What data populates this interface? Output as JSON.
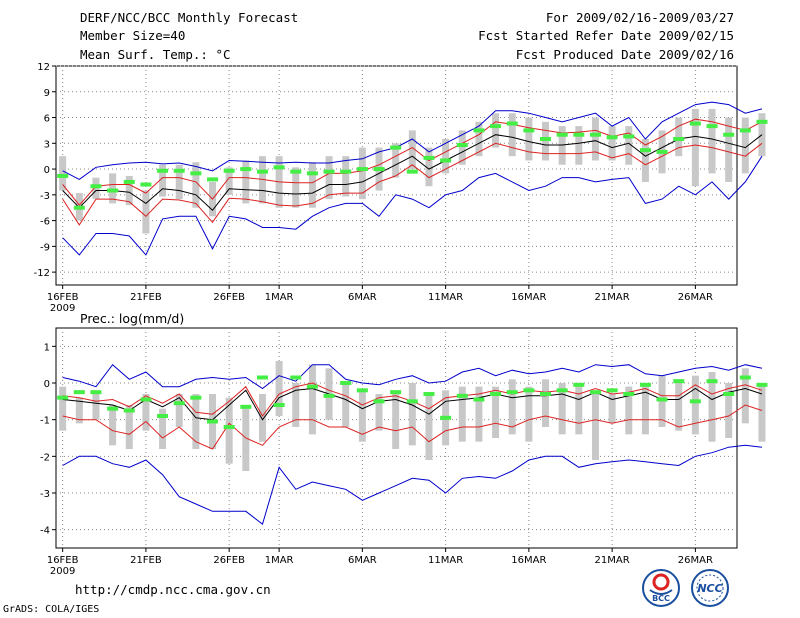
{
  "header": {
    "title": "DERF/NCC/BCC Monthly Forecast",
    "member": "Member Size=40",
    "variable": "Mean Surf. Temp.: °C",
    "period": "For 2009/02/16-2009/03/27",
    "started": "Fcst Started Refer Date 2009/02/15",
    "produced": "Fcst Produced Date 2009/02/16"
  },
  "footer": {
    "url": "http://cmdp.ncc.cma.gov.cn",
    "grads": "GrADS: COLA/IGES",
    "logo_bcc": "BCC",
    "logo_ncc": "NCC"
  },
  "colors": {
    "mean": "#000000",
    "spread": "#dd2222",
    "extreme": "#0000cc",
    "marker": "#44ee44",
    "box": "#c8c8c8"
  },
  "chart_data": [
    {
      "type": "line",
      "title": "Mean Surf. Temp.: °C",
      "ylim": [
        -13.5,
        12
      ],
      "yticks": [
        12,
        9,
        6,
        3,
        0,
        -3,
        -6,
        -9,
        -12
      ],
      "ytick_labels": [
        "12",
        "9",
        "6",
        "3",
        "0",
        "-3",
        "-6",
        "-9",
        "-12"
      ],
      "xlim": [
        -0.4,
        40.5
      ],
      "xtick_pos": [
        0,
        5,
        10,
        13,
        18,
        23,
        28,
        33,
        38
      ],
      "xtick_labels": [
        "16FEB",
        "21FEB",
        "26FEB",
        "1MAR",
        "6MAR",
        "11MAR",
        "16MAR",
        "21MAR",
        "26MAR"
      ],
      "year_label": "2009",
      "days": 38,
      "series": [
        {
          "name": "max",
          "role": "extreme",
          "values": [
            -0.2,
            -1.2,
            0.2,
            0.5,
            0.7,
            0.8,
            0.6,
            0.7,
            0.3,
            -0.2,
            1.0,
            0.9,
            0.8,
            0.7,
            0.8,
            0.7,
            0.7,
            1.0,
            1.2,
            2.0,
            2.5,
            3.5,
            2.0,
            3.0,
            4.0,
            5.0,
            6.8,
            6.8,
            6.5,
            6.0,
            5.5,
            6.0,
            6.5,
            5.0,
            6.0,
            3.5,
            5.5,
            6.5,
            7.5,
            7.8,
            7.5,
            6.5,
            7.0
          ]
        },
        {
          "name": "upper",
          "role": "spread",
          "values": [
            -1.8,
            -4.2,
            -2.0,
            -1.8,
            -1.8,
            -2.8,
            -1.0,
            -1.0,
            -1.5,
            -3.5,
            -1.0,
            -1.0,
            -1.2,
            -1.5,
            -1.6,
            -1.6,
            -0.5,
            -0.5,
            -0.2,
            0.5,
            1.5,
            2.5,
            1.0,
            2.0,
            3.0,
            4.0,
            5.5,
            5.2,
            4.8,
            4.5,
            4.2,
            4.3,
            4.5,
            3.8,
            4.2,
            2.8,
            3.8,
            5.0,
            5.8,
            5.5,
            5.0,
            4.5,
            5.5
          ]
        },
        {
          "name": "mean",
          "role": "mean",
          "values": [
            -2.5,
            -4.5,
            -2.5,
            -2.5,
            -2.7,
            -4.0,
            -2.3,
            -2.5,
            -3.0,
            -4.8,
            -2.3,
            -2.4,
            -2.5,
            -2.8,
            -2.9,
            -2.8,
            -1.8,
            -1.8,
            -1.5,
            -0.5,
            0.5,
            1.5,
            0.0,
            1.0,
            2.0,
            3.0,
            4.0,
            3.7,
            3.2,
            2.8,
            2.8,
            3.0,
            3.3,
            2.5,
            3.0,
            1.5,
            2.5,
            3.5,
            3.8,
            3.5,
            3.0,
            2.5,
            4.0
          ]
        },
        {
          "name": "lower",
          "role": "spread",
          "values": [
            -3.5,
            -6.5,
            -3.5,
            -3.5,
            -3.8,
            -5.5,
            -3.5,
            -3.6,
            -4.0,
            -6.2,
            -3.4,
            -3.5,
            -3.8,
            -4.2,
            -4.3,
            -4.0,
            -3.0,
            -2.8,
            -2.8,
            -1.5,
            -0.8,
            0.5,
            -1.0,
            0.0,
            1.0,
            2.0,
            3.0,
            2.5,
            2.0,
            1.8,
            1.8,
            1.8,
            2.0,
            1.3,
            1.8,
            0.5,
            1.5,
            2.5,
            2.8,
            2.5,
            2.0,
            1.5,
            3.0
          ]
        },
        {
          "name": "min",
          "role": "extreme",
          "values": [
            -8.0,
            -10.0,
            -7.5,
            -7.5,
            -7.8,
            -10.0,
            -5.8,
            -5.5,
            -5.5,
            -9.3,
            -5.5,
            -5.8,
            -6.8,
            -6.8,
            -7.0,
            -5.5,
            -4.5,
            -4.0,
            -4.0,
            -5.5,
            -3.0,
            -3.5,
            -4.5,
            -3.0,
            -2.5,
            -1.0,
            -0.5,
            -1.5,
            -2.5,
            -2.0,
            -1.0,
            -1.0,
            -1.5,
            -1.2,
            -1.0,
            -4.0,
            -3.5,
            -2.0,
            -3.0,
            -1.5,
            -3.5,
            -1.5,
            1.5
          ]
        },
        {
          "name": "box_top",
          "role": "box",
          "values": [
            1.5,
            -2.8,
            -1.0,
            -0.5,
            -0.8,
            -2.5,
            0.5,
            0.5,
            0.8,
            -1.5,
            0.2,
            1.0,
            1.5,
            1.5,
            0.2,
            0.8,
            1.5,
            1.5,
            2.5,
            2.5,
            3.0,
            4.5,
            2.5,
            3.5,
            4.5,
            5.5,
            6.5,
            6.5,
            6.0,
            5.5,
            5.0,
            5.0,
            6.0,
            5.0,
            5.0,
            3.5,
            4.5,
            6.0,
            7.0,
            7.0,
            6.0,
            6.0,
            6.5
          ]
        },
        {
          "name": "box_bottom",
          "role": "box",
          "values": [
            -2.5,
            -6.0,
            -3.5,
            -4.0,
            -4.2,
            -7.5,
            -3.2,
            -3.5,
            -4.5,
            -5.5,
            -3.0,
            -4.0,
            -4.0,
            -4.5,
            -4.5,
            -4.5,
            -3.5,
            -3.2,
            -3.5,
            -2.5,
            -1.0,
            0.0,
            -2.0,
            -0.5,
            0.5,
            1.5,
            2.5,
            1.5,
            1.0,
            1.0,
            0.5,
            0.5,
            1.0,
            1.0,
            0.5,
            -1.5,
            -0.5,
            1.5,
            -2.0,
            -0.5,
            -1.5,
            -0.5,
            1.5
          ]
        },
        {
          "name": "marker",
          "role": "marker",
          "values": [
            -0.8,
            -4.5,
            -2.0,
            -2.5,
            -1.5,
            -1.8,
            -0.2,
            -0.2,
            -0.5,
            -1.2,
            -0.2,
            0.0,
            -0.3,
            0.2,
            -0.3,
            -0.5,
            -0.3,
            -0.3,
            0.0,
            0.0,
            2.5,
            -0.3,
            1.3,
            1.0,
            2.8,
            4.5,
            5.0,
            5.3,
            4.5,
            3.5,
            4.0,
            4.0,
            4.0,
            3.7,
            3.8,
            2.2,
            2.0,
            3.5,
            5.3,
            5.0,
            4.0,
            4.5,
            5.5
          ]
        }
      ]
    },
    {
      "type": "line",
      "title": "Prec.: log(mm/d)",
      "ylim": [
        -4.5,
        1.5
      ],
      "yticks": [
        1,
        0,
        -1,
        -2,
        -3,
        -4
      ],
      "ytick_labels": [
        "1",
        "0",
        "-1",
        "-2",
        "-3",
        "-4"
      ],
      "xlim": [
        -0.4,
        40.5
      ],
      "xtick_pos": [
        0,
        5,
        10,
        13,
        18,
        23,
        28,
        33,
        38
      ],
      "xtick_labels": [
        "16FEB",
        "21FEB",
        "26FEB",
        "1MAR",
        "6MAR",
        "11MAR",
        "16MAR",
        "21MAR",
        "26MAR"
      ],
      "year_label": "2009",
      "days": 38,
      "series": [
        {
          "name": "max",
          "role": "extreme",
          "values": [
            0.15,
            0.05,
            -0.1,
            0.5,
            0.1,
            0.3,
            -0.1,
            -0.1,
            0.1,
            0.15,
            0.1,
            0.15,
            -0.15,
            0.2,
            0.05,
            0.5,
            0.5,
            0.1,
            0.0,
            -0.05,
            0.1,
            0.2,
            0.0,
            0.05,
            0.3,
            0.4,
            0.2,
            0.35,
            0.25,
            0.3,
            0.4,
            0.3,
            0.5,
            0.45,
            0.5,
            0.25,
            0.2,
            0.3,
            0.4,
            0.45,
            0.35,
            0.5,
            0.4
          ]
        },
        {
          "name": "upper",
          "role": "spread",
          "values": [
            -0.35,
            -0.4,
            -0.5,
            -0.45,
            -0.65,
            -0.35,
            -0.55,
            -0.3,
            -0.8,
            -0.85,
            -0.5,
            -0.1,
            -0.9,
            -0.3,
            -0.1,
            0.0,
            -0.2,
            -0.35,
            -0.6,
            -0.4,
            -0.35,
            -0.5,
            -0.7,
            -0.4,
            -0.35,
            -0.3,
            -0.2,
            -0.3,
            -0.2,
            -0.25,
            -0.2,
            -0.3,
            -0.15,
            -0.3,
            -0.25,
            -0.15,
            -0.35,
            -0.35,
            -0.05,
            -0.3,
            -0.15,
            -0.05,
            -0.2
          ]
        },
        {
          "name": "mean",
          "role": "mean",
          "values": [
            -0.45,
            -0.5,
            -0.55,
            -0.6,
            -0.75,
            -0.45,
            -0.65,
            -0.4,
            -0.95,
            -1.0,
            -0.6,
            -0.2,
            -1.0,
            -0.4,
            -0.2,
            -0.15,
            -0.3,
            -0.45,
            -0.7,
            -0.5,
            -0.45,
            -0.6,
            -0.85,
            -0.5,
            -0.45,
            -0.4,
            -0.3,
            -0.4,
            -0.35,
            -0.35,
            -0.3,
            -0.45,
            -0.25,
            -0.45,
            -0.35,
            -0.25,
            -0.45,
            -0.45,
            -0.15,
            -0.45,
            -0.25,
            -0.15,
            -0.3
          ]
        },
        {
          "name": "lower",
          "role": "spread",
          "values": [
            -0.9,
            -1.0,
            -1.0,
            -1.3,
            -1.4,
            -1.05,
            -1.5,
            -1.2,
            -1.6,
            -1.8,
            -1.1,
            -1.5,
            -1.7,
            -1.2,
            -1.0,
            -1.0,
            -1.2,
            -1.2,
            -1.4,
            -1.2,
            -1.3,
            -1.2,
            -1.6,
            -1.3,
            -1.2,
            -1.2,
            -1.1,
            -1.2,
            -1.0,
            -0.9,
            -1.0,
            -1.1,
            -1.0,
            -1.1,
            -1.0,
            -1.0,
            -1.0,
            -1.2,
            -1.1,
            -1.0,
            -0.9,
            -0.6,
            -0.75
          ]
        },
        {
          "name": "min",
          "role": "extreme",
          "values": [
            -2.25,
            -2.0,
            -2.0,
            -2.2,
            -2.3,
            -2.1,
            -2.5,
            -3.1,
            -3.3,
            -3.5,
            -3.5,
            -3.5,
            -3.85,
            -2.3,
            -2.9,
            -2.7,
            -2.8,
            -2.9,
            -3.2,
            -3.0,
            -2.8,
            -2.6,
            -2.65,
            -3.0,
            -2.6,
            -2.55,
            -2.6,
            -2.4,
            -2.1,
            -2.0,
            -2.0,
            -2.3,
            -2.2,
            -2.15,
            -2.1,
            -2.15,
            -2.2,
            -2.25,
            -2.0,
            -1.9,
            -1.75,
            -1.7,
            -1.75
          ]
        },
        {
          "name": "box_top",
          "role": "box",
          "values": [
            -0.1,
            -0.4,
            -0.25,
            -0.6,
            -0.6,
            -0.3,
            -0.7,
            -0.3,
            -0.3,
            -0.3,
            -0.4,
            -0.7,
            -0.3,
            0.6,
            0.0,
            0.5,
            0.4,
            0.0,
            -0.2,
            -0.3,
            -0.2,
            0.0,
            -0.3,
            -0.2,
            -0.1,
            -0.1,
            -0.1,
            0.1,
            -0.1,
            0.1,
            0.0,
            -0.1,
            -0.3,
            -0.3,
            -0.1,
            0.0,
            0.2,
            0.1,
            0.2,
            0.3,
            0.0,
            0.4,
            0.0
          ]
        },
        {
          "name": "box_bottom",
          "role": "box",
          "values": [
            -1.3,
            -1.1,
            -1.0,
            -1.7,
            -1.8,
            -1.3,
            -1.8,
            -1.2,
            -1.8,
            -1.8,
            -2.2,
            -2.4,
            -1.6,
            -0.9,
            -1.2,
            -1.4,
            -1.0,
            -1.2,
            -1.6,
            -1.3,
            -1.8,
            -1.7,
            -2.1,
            -1.7,
            -1.6,
            -1.6,
            -1.5,
            -1.4,
            -1.6,
            -1.2,
            -1.4,
            -1.4,
            -2.1,
            -1.1,
            -1.4,
            -1.4,
            -1.2,
            -1.3,
            -1.4,
            -1.6,
            -1.5,
            -1.1,
            -1.6
          ]
        },
        {
          "name": "marker",
          "role": "marker",
          "values": [
            -0.4,
            -0.25,
            -0.25,
            -0.7,
            -0.75,
            -0.45,
            -0.9,
            -0.55,
            -0.4,
            -1.05,
            -1.2,
            -0.65,
            0.15,
            -0.6,
            0.15,
            -0.1,
            -0.35,
            0.0,
            -0.2,
            -0.5,
            -0.25,
            -0.5,
            -0.3,
            -0.95,
            -0.35,
            -0.45,
            -0.3,
            -0.25,
            -0.2,
            -0.3,
            -0.2,
            -0.05,
            -0.25,
            -0.2,
            -0.3,
            -0.05,
            -0.45,
            0.05,
            -0.5,
            0.05,
            -0.3,
            0.15,
            -0.05
          ]
        }
      ]
    }
  ]
}
